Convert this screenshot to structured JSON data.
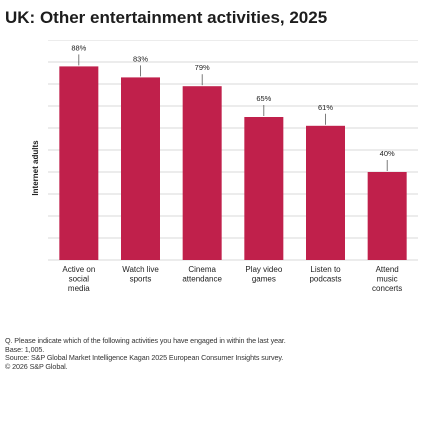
{
  "title": "UK: Other entertainment activities, 2025",
  "chart_data": {
    "type": "bar",
    "categories": [
      [
        "Active on",
        "social",
        "media"
      ],
      [
        "Watch live",
        "sports"
      ],
      [
        "Cinema",
        "attendance"
      ],
      [
        "Play video",
        "games"
      ],
      [
        "Listen to",
        "podcasts"
      ],
      [
        "Attend",
        "music",
        "concerts"
      ]
    ],
    "values": [
      88,
      83,
      79,
      65,
      61,
      40
    ],
    "data_labels": [
      "88%",
      "83%",
      "79%",
      "65%",
      "61%",
      "40%"
    ],
    "ylabel": "Internet adults",
    "ylim": [
      0,
      100
    ],
    "grid": true,
    "bar_color": "#c0204b",
    "grid_color": "#d9d9d9"
  },
  "notes": {
    "question": "Q. Please indicate which of the following activities you have engaged in within the last year.",
    "base": "Base: 1,005.",
    "source": "Source: S&P Global Market Intelligence Kagan 2025 European Consumer Insights survey.",
    "copyright": "© 2026 S&P Global."
  }
}
